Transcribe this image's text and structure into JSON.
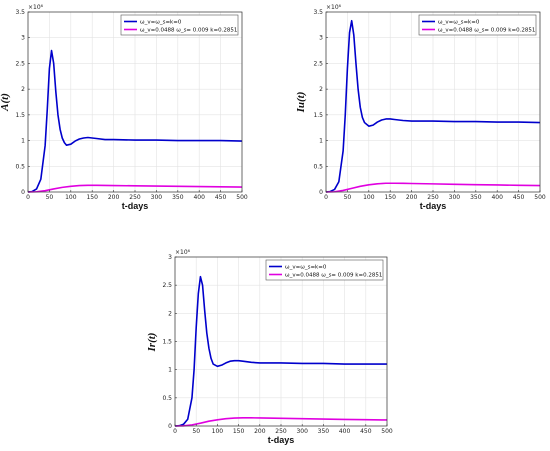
{
  "chart_data": [
    {
      "type": "line",
      "title": "",
      "xlabel": "t-days",
      "ylabel": "A(t)",
      "exponent_label": "×10⁶",
      "xlim": [
        0,
        500
      ],
      "ylim": [
        0,
        3.5
      ],
      "xticks": [
        "0",
        "50",
        "100",
        "150",
        "200",
        "250",
        "300",
        "350",
        "400",
        "450",
        "500"
      ],
      "yticks": [
        "0",
        "0.5",
        "1",
        "1.5",
        "2",
        "2.5",
        "3",
        "3.5"
      ],
      "grid": true,
      "legend_position": "top-right",
      "legend_entries": [
        "ω_v=ω_s=k=0",
        "ω_v=0.0488  ω_s= 0.009  k=0.2851"
      ],
      "colors": [
        "#0000cc",
        "#e000e0"
      ],
      "series": [
        {
          "x": [
            0,
            10,
            20,
            30,
            40,
            45,
            50,
            55,
            60,
            65,
            70,
            75,
            80,
            85,
            90,
            100,
            110,
            120,
            130,
            140,
            150,
            160,
            180,
            200,
            250,
            300,
            350,
            400,
            450,
            500
          ],
          "y": [
            0,
            0.01,
            0.06,
            0.25,
            0.9,
            1.6,
            2.4,
            2.75,
            2.5,
            1.95,
            1.5,
            1.22,
            1.05,
            0.96,
            0.91,
            0.93,
            0.99,
            1.03,
            1.05,
            1.06,
            1.05,
            1.04,
            1.02,
            1.02,
            1.01,
            1.01,
            1.0,
            1.0,
            1.0,
            0.99
          ]
        },
        {
          "x": [
            0,
            20,
            40,
            60,
            80,
            100,
            120,
            140,
            160,
            180,
            200,
            250,
            300,
            350,
            400,
            450,
            500
          ],
          "y": [
            0,
            0.005,
            0.025,
            0.06,
            0.09,
            0.11,
            0.125,
            0.13,
            0.13,
            0.128,
            0.125,
            0.12,
            0.115,
            0.11,
            0.105,
            0.1,
            0.095
          ]
        }
      ]
    },
    {
      "type": "line",
      "title": "",
      "xlabel": "t-days",
      "ylabel": "Iu(t)",
      "exponent_label": "×10⁶",
      "xlim": [
        0,
        500
      ],
      "ylim": [
        0,
        3.5
      ],
      "xticks": [
        "0",
        "50",
        "100",
        "150",
        "200",
        "250",
        "300",
        "350",
        "400",
        "450",
        "500"
      ],
      "yticks": [
        "0",
        "0.5",
        "1",
        "1.5",
        "2",
        "2.5",
        "3",
        "3.5"
      ],
      "grid": true,
      "legend_position": "top-right",
      "legend_entries": [
        "ω_v=ω_s=k=0",
        "ω_v=0.0488  ω_s= 0.009  k=0.2851"
      ],
      "colors": [
        "#0000cc",
        "#e000e0"
      ],
      "series": [
        {
          "x": [
            0,
            10,
            20,
            30,
            40,
            45,
            50,
            55,
            60,
            65,
            70,
            75,
            80,
            85,
            90,
            100,
            110,
            120,
            130,
            140,
            150,
            160,
            180,
            200,
            250,
            300,
            350,
            400,
            450,
            500
          ],
          "y": [
            0,
            0.01,
            0.05,
            0.2,
            0.8,
            1.5,
            2.4,
            3.1,
            3.33,
            3.05,
            2.5,
            2.0,
            1.65,
            1.45,
            1.35,
            1.28,
            1.3,
            1.36,
            1.4,
            1.42,
            1.42,
            1.41,
            1.39,
            1.38,
            1.38,
            1.37,
            1.37,
            1.36,
            1.36,
            1.35
          ]
        },
        {
          "x": [
            0,
            20,
            40,
            60,
            80,
            100,
            120,
            140,
            160,
            180,
            200,
            250,
            300,
            350,
            400,
            450,
            500
          ],
          "y": [
            0,
            0.005,
            0.03,
            0.07,
            0.11,
            0.14,
            0.16,
            0.17,
            0.17,
            0.168,
            0.165,
            0.158,
            0.15,
            0.143,
            0.137,
            0.13,
            0.125
          ]
        }
      ]
    },
    {
      "type": "line",
      "title": "",
      "xlabel": "t-days",
      "ylabel": "Ir(t)",
      "exponent_label": "×10⁶",
      "xlim": [
        0,
        500
      ],
      "ylim": [
        0,
        3
      ],
      "xticks": [
        "0",
        "50",
        "100",
        "150",
        "200",
        "250",
        "300",
        "350",
        "400",
        "450",
        "500"
      ],
      "yticks": [
        "0",
        "0.5",
        "1",
        "1.5",
        "2",
        "2.5",
        "3"
      ],
      "grid": true,
      "legend_position": "top-right",
      "legend_entries": [
        "ω_v=ω_s=k=0",
        "ω_v=0.0488  ω_s= 0.009  k=0.2851"
      ],
      "colors": [
        "#0000cc",
        "#e000e0"
      ],
      "series": [
        {
          "x": [
            0,
            10,
            20,
            30,
            40,
            45,
            50,
            55,
            60,
            65,
            70,
            75,
            80,
            85,
            90,
            100,
            110,
            120,
            130,
            140,
            150,
            160,
            180,
            200,
            250,
            300,
            350,
            400,
            450,
            500
          ],
          "y": [
            0,
            0.005,
            0.03,
            0.12,
            0.5,
            1.0,
            1.75,
            2.35,
            2.65,
            2.5,
            2.05,
            1.65,
            1.38,
            1.2,
            1.1,
            1.06,
            1.08,
            1.12,
            1.15,
            1.16,
            1.16,
            1.15,
            1.13,
            1.12,
            1.12,
            1.11,
            1.11,
            1.1,
            1.1,
            1.1
          ]
        },
        {
          "x": [
            0,
            20,
            40,
            60,
            80,
            100,
            120,
            140,
            160,
            180,
            200,
            250,
            300,
            350,
            400,
            450,
            500
          ],
          "y": [
            0,
            0.004,
            0.02,
            0.05,
            0.085,
            0.11,
            0.13,
            0.14,
            0.145,
            0.145,
            0.143,
            0.137,
            0.13,
            0.123,
            0.117,
            0.112,
            0.107
          ]
        }
      ]
    }
  ]
}
